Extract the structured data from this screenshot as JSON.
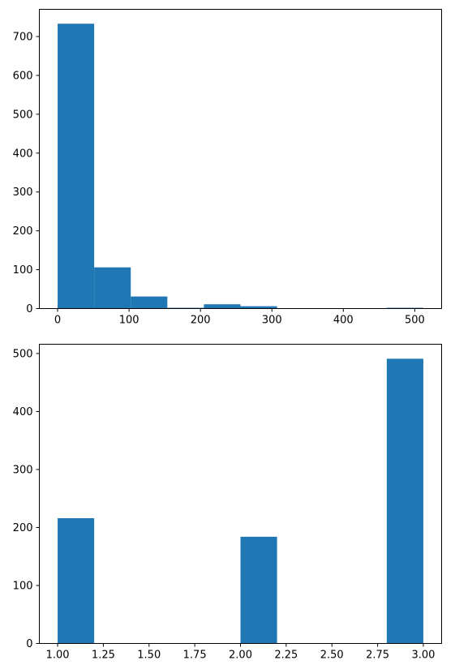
{
  "chart_data": [
    {
      "type": "bar",
      "subtype": "histogram",
      "title": "",
      "xlabel": "",
      "ylabel": "",
      "bar_color": "#1f77b4",
      "bins": [
        {
          "x0": 0.0,
          "x1": 51.2,
          "count": 733
        },
        {
          "x0": 51.2,
          "x1": 102.4,
          "count": 106
        },
        {
          "x0": 102.4,
          "x1": 153.6,
          "count": 31
        },
        {
          "x0": 153.6,
          "x1": 204.8,
          "count": 2
        },
        {
          "x0": 204.8,
          "x1": 256.0,
          "count": 11
        },
        {
          "x0": 256.0,
          "x1": 307.2,
          "count": 6
        },
        {
          "x0": 307.2,
          "x1": 358.4,
          "count": 0
        },
        {
          "x0": 358.4,
          "x1": 409.6,
          "count": 0
        },
        {
          "x0": 409.6,
          "x1": 460.8,
          "count": 0
        },
        {
          "x0": 460.8,
          "x1": 512.0,
          "count": 2
        }
      ],
      "xlim": [
        -25.6,
        537.6
      ],
      "ylim": [
        0,
        770
      ],
      "xticks": [
        0,
        100,
        200,
        300,
        400,
        500
      ],
      "xtick_labels": [
        "0",
        "100",
        "200",
        "300",
        "400",
        "500"
      ],
      "yticks": [
        0,
        100,
        200,
        300,
        400,
        500,
        600,
        700
      ],
      "ytick_labels": [
        "0",
        "100",
        "200",
        "300",
        "400",
        "500",
        "600",
        "700"
      ],
      "grid": false,
      "legend": false
    },
    {
      "type": "bar",
      "subtype": "histogram",
      "title": "",
      "xlabel": "",
      "ylabel": "",
      "bar_color": "#1f77b4",
      "bins": [
        {
          "x0": 1.0,
          "x1": 1.2,
          "count": 216
        },
        {
          "x0": 1.2,
          "x1": 1.4,
          "count": 0
        },
        {
          "x0": 1.4,
          "x1": 1.6,
          "count": 0
        },
        {
          "x0": 1.6,
          "x1": 1.8,
          "count": 0
        },
        {
          "x0": 1.8,
          "x1": 2.0,
          "count": 0
        },
        {
          "x0": 2.0,
          "x1": 2.2,
          "count": 184
        },
        {
          "x0": 2.2,
          "x1": 2.4,
          "count": 0
        },
        {
          "x0": 2.4,
          "x1": 2.6,
          "count": 0
        },
        {
          "x0": 2.6,
          "x1": 2.8,
          "count": 0
        },
        {
          "x0": 2.8,
          "x1": 3.0,
          "count": 491
        }
      ],
      "xlim": [
        0.9,
        3.1
      ],
      "ylim": [
        0,
        516
      ],
      "xticks": [
        1.0,
        1.25,
        1.5,
        1.75,
        2.0,
        2.25,
        2.5,
        2.75,
        3.0
      ],
      "xtick_labels": [
        "1.00",
        "1.25",
        "1.50",
        "1.75",
        "2.00",
        "2.25",
        "2.50",
        "2.75",
        "3.00"
      ],
      "yticks": [
        0,
        100,
        200,
        300,
        400,
        500
      ],
      "ytick_labels": [
        "0",
        "100",
        "200",
        "300",
        "400",
        "500"
      ],
      "grid": false,
      "legend": false
    }
  ]
}
